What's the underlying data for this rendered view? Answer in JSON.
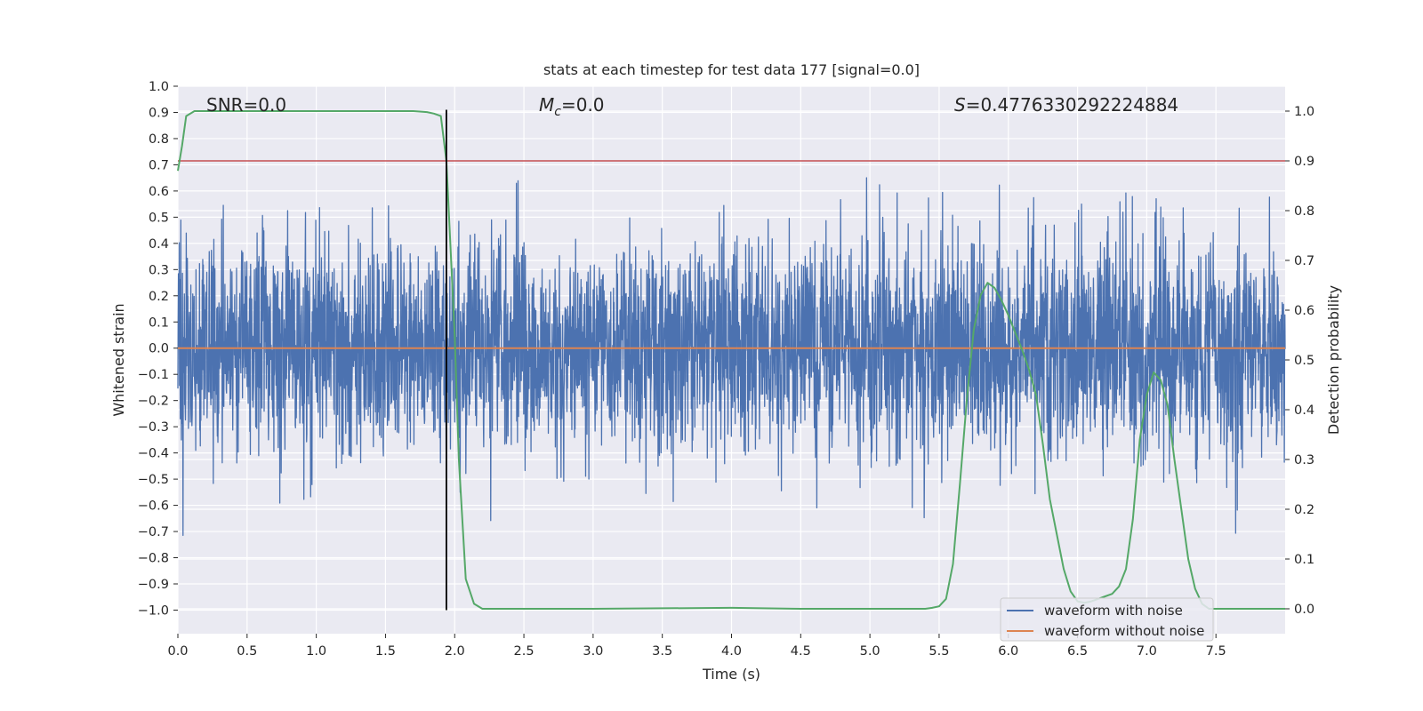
{
  "chart_data": {
    "type": "line",
    "title": "stats at each timestep for test data 177 [signal=0.0]",
    "xlabel": "Time (s)",
    "ylabel": "Whitened strain",
    "y2label": "Detection probability",
    "xlim": [
      0.0,
      8.0
    ],
    "ylim": [
      -1.09,
      1.0
    ],
    "y2lim": [
      -0.05,
      1.05
    ],
    "xticks": [
      0.0,
      0.5,
      1.0,
      1.5,
      2.0,
      2.5,
      3.0,
      3.5,
      4.0,
      4.5,
      5.0,
      5.5,
      6.0,
      6.5,
      7.0,
      7.5
    ],
    "xtick_labels": [
      "0.0",
      "0.5",
      "1.0",
      "1.5",
      "2.0",
      "2.5",
      "3.0",
      "3.5",
      "4.0",
      "4.5",
      "5.0",
      "5.5",
      "6.0",
      "6.5",
      "7.0",
      "7.5"
    ],
    "yticks": [
      1.0,
      0.9,
      0.8,
      0.7,
      0.6,
      0.5,
      0.4,
      0.3,
      0.2,
      0.1,
      0.0,
      -0.1,
      -0.2,
      -0.3,
      -0.4,
      -0.5,
      -0.6,
      -0.7,
      -0.8,
      -0.9,
      -1.0
    ],
    "ytick_labels": [
      "1.0",
      "0.9",
      "0.8",
      "0.7",
      "0.6",
      "0.5",
      "0.4",
      "0.3",
      "0.2",
      "0.1",
      "0.0",
      "−0.1",
      "−0.2",
      "−0.3",
      "−0.4",
      "−0.5",
      "−0.6",
      "−0.7",
      "−0.8",
      "−0.9",
      "−1.0"
    ],
    "y2ticks": [
      1.0,
      0.9,
      0.8,
      0.7,
      0.6,
      0.5,
      0.4,
      0.3,
      0.2,
      0.1,
      0.0
    ],
    "y2tick_labels": [
      "1.0",
      "0.9",
      "0.8",
      "0.7",
      "0.6",
      "0.5",
      "0.4",
      "0.3",
      "0.2",
      "0.1",
      "0.0"
    ],
    "annotations": {
      "snr": "SNR=0.0",
      "mc_symbol": "M",
      "mc_subscript": "c",
      "mc_value": "=0.0",
      "s_symbol": "S",
      "s_value": "=0.4776330292224884"
    },
    "threshold": {
      "value": 0.9,
      "axis": "y2",
      "color": "#c44e52"
    },
    "detection_time_marker": {
      "x": 1.94,
      "y_from": -1.0,
      "y_to": 0.91,
      "color": "#000000"
    },
    "series": [
      {
        "name": "waveform with noise",
        "color": "#4c72b0",
        "axis": "y",
        "kind": "noise",
        "amplitude_sd": 0.2,
        "seed": 177,
        "samples": 4096
      },
      {
        "name": "waveform without noise",
        "color": "#dd8452",
        "axis": "y",
        "x": [
          0.0,
          8.0
        ],
        "y": [
          0.0,
          0.0
        ]
      },
      {
        "name": "detection probability",
        "color": "#55a868",
        "axis": "y2",
        "x": [
          0.0,
          0.03,
          0.06,
          0.12,
          0.2,
          0.4,
          0.8,
          1.2,
          1.6,
          1.7,
          1.8,
          1.85,
          1.9,
          1.94,
          2.0,
          2.03,
          2.08,
          2.14,
          2.2,
          2.4,
          3.0,
          4.0,
          4.5,
          5.0,
          5.3,
          5.4,
          5.45,
          5.5,
          5.55,
          5.6,
          5.65,
          5.7,
          5.75,
          5.8,
          5.85,
          5.9,
          5.95,
          6.0,
          6.05,
          6.1,
          6.15,
          6.2,
          6.25,
          6.3,
          6.35,
          6.4,
          6.45,
          6.5,
          6.55,
          6.6,
          6.65,
          6.7,
          6.75,
          6.8,
          6.85,
          6.9,
          6.95,
          7.0,
          7.05,
          7.1,
          7.15,
          7.2,
          7.25,
          7.3,
          7.35,
          7.4,
          7.45,
          7.5,
          7.55,
          7.6,
          7.65,
          7.7,
          7.8,
          8.0
        ],
        "y": [
          0.88,
          0.93,
          0.99,
          1.0,
          1.0,
          1.0,
          1.0,
          1.0,
          1.0,
          1.0,
          0.998,
          0.995,
          0.99,
          0.9,
          0.55,
          0.3,
          0.06,
          0.01,
          0.0,
          0.0,
          0.0,
          0.002,
          0.0,
          0.0,
          0.0,
          0.0,
          0.002,
          0.005,
          0.02,
          0.09,
          0.25,
          0.42,
          0.56,
          0.63,
          0.655,
          0.645,
          0.62,
          0.59,
          0.555,
          0.52,
          0.48,
          0.43,
          0.33,
          0.22,
          0.15,
          0.08,
          0.035,
          0.015,
          0.012,
          0.015,
          0.02,
          0.025,
          0.03,
          0.045,
          0.08,
          0.18,
          0.34,
          0.43,
          0.475,
          0.46,
          0.41,
          0.3,
          0.2,
          0.1,
          0.04,
          0.01,
          0.0,
          0.0,
          0.0,
          0.0,
          0.0,
          0.0,
          0.0,
          0.0
        ]
      }
    ],
    "legend": {
      "position": "lower-right",
      "entries": [
        {
          "label": "waveform with noise",
          "color": "#4c72b0"
        },
        {
          "label": "waveform without noise",
          "color": "#dd8452"
        }
      ]
    },
    "style": {
      "plot_background": "#eaeaf2",
      "grid_color": "#ffffff",
      "grid": true
    }
  }
}
